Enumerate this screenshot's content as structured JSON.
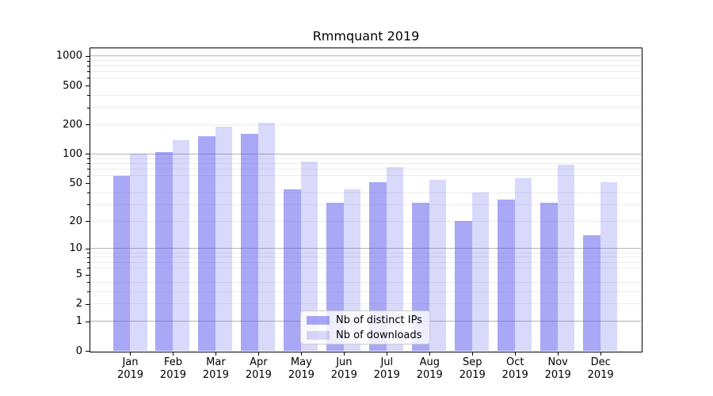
{
  "chart_data": {
    "type": "bar",
    "title": "Rmmquant 2019",
    "categories": [
      "Jan",
      "Feb",
      "Mar",
      "Apr",
      "May",
      "Jun",
      "Jul",
      "Aug",
      "Sep",
      "Oct",
      "Nov",
      "Dec"
    ],
    "category_year": "2019",
    "series": [
      {
        "name": "Nb of distinct IPs",
        "color": "rgba(81,81,237,0.5)",
        "values": [
          60,
          105,
          153,
          160,
          43,
          31,
          51,
          31,
          20,
          34,
          31,
          14
        ]
      },
      {
        "name": "Nb of downloads",
        "color": "rgba(81,81,237,0.22)",
        "values": [
          101,
          138,
          192,
          211,
          83,
          43,
          73,
          54,
          40,
          56,
          77,
          51
        ]
      }
    ],
    "y_axis": {
      "scale": "log10(1+v)",
      "tick_values": [
        0,
        1,
        2,
        5,
        10,
        20,
        50,
        100,
        200,
        500,
        1000
      ],
      "major_grid_values": [
        1,
        10,
        100,
        1000
      ],
      "minor_grid_values": [
        2,
        3,
        4,
        6,
        7,
        8,
        9,
        20,
        30,
        40,
        60,
        70,
        80,
        90,
        200,
        300,
        400,
        600,
        700,
        800,
        900
      ],
      "ylim": [
        0,
        1250
      ]
    },
    "legend": {
      "position": "lower center",
      "entries": [
        "Nb of distinct IPs",
        "Nb of downloads"
      ]
    },
    "colors": {
      "major_grid": "#b4b4b4",
      "minor_grid": "#ececec",
      "axis": "#000000",
      "background": "#ffffff"
    }
  }
}
